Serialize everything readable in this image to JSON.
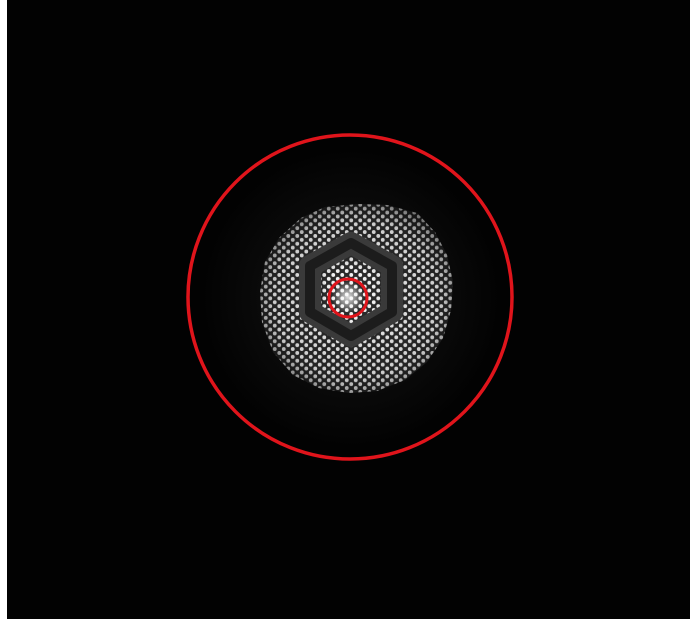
{
  "image": {
    "description_free": true,
    "background_color": "#020202",
    "marker_color": "#e0141b",
    "fiber_bright_color": "#e8e8e8",
    "fiber_dim_color": "#5a5a5a"
  },
  "markers": {
    "outer_circle_label": "",
    "inner_circle_label": ""
  }
}
